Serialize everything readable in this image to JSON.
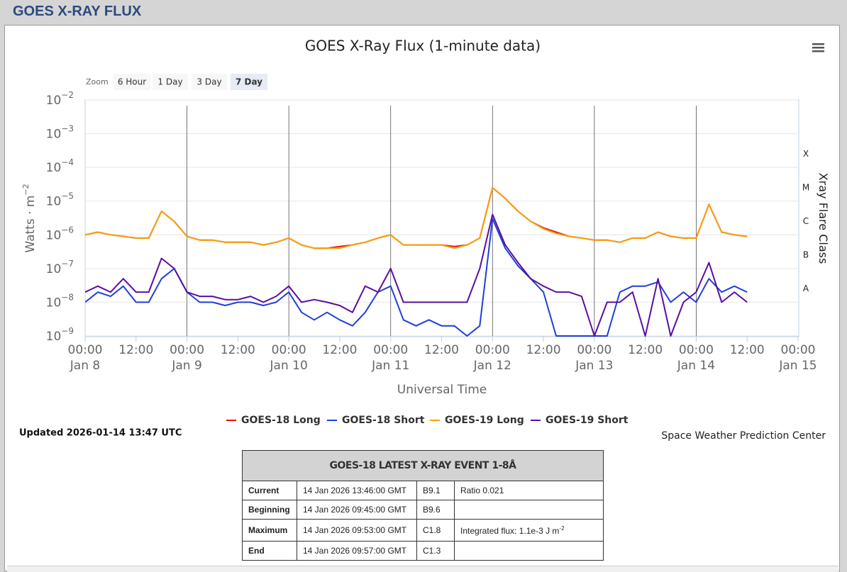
{
  "header": {
    "title": "GOES X-RAY FLUX"
  },
  "chart_data": {
    "type": "line",
    "title": "GOES X-Ray Flux (1-minute data)",
    "zoom_label": "Zoom",
    "zoom_buttons": [
      "6 Hour",
      "1 Day",
      "3 Day",
      "7 Day"
    ],
    "zoom_selected": 3,
    "ylabel": {
      "text": "Watts · m",
      "sup": "−2"
    },
    "xlabel": "Universal Time",
    "y2label": "Xray Flare Class",
    "flare_classes": [
      "X",
      "M",
      "C",
      "B",
      "A"
    ],
    "log_scale": true,
    "grid": true,
    "ylim": [
      1e-09,
      0.01
    ],
    "yticks": [
      {
        "value": 0.01,
        "label": "10",
        "sup": "−2"
      },
      {
        "value": 0.001,
        "label": "10",
        "sup": "−3"
      },
      {
        "value": 0.0001,
        "label": "10",
        "sup": "−4"
      },
      {
        "value": 1e-05,
        "label": "10",
        "sup": "−5"
      },
      {
        "value": 1e-06,
        "label": "10",
        "sup": "−6"
      },
      {
        "value": 1e-07,
        "label": "10",
        "sup": "−7"
      },
      {
        "value": 1e-08,
        "label": "10",
        "sup": "−8"
      },
      {
        "value": 1e-09,
        "label": "10",
        "sup": "−9"
      }
    ],
    "xlim": [
      "Jan 8 00:00",
      "Jan 15 00:00"
    ],
    "xticks": [
      {
        "value": "Jan 8 00:00",
        "label": [
          "00:00",
          "Jan 8"
        ]
      },
      {
        "value": "Jan 8 12:00",
        "label": [
          "12:00"
        ]
      },
      {
        "value": "Jan 9 00:00",
        "label": [
          "00:00",
          "Jan 9"
        ]
      },
      {
        "value": "Jan 9 12:00",
        "label": [
          "12:00"
        ]
      },
      {
        "value": "Jan 10 00:00",
        "label": [
          "00:00",
          "Jan 10"
        ]
      },
      {
        "value": "Jan 10 12:00",
        "label": [
          "12:00"
        ]
      },
      {
        "value": "Jan 11 00:00",
        "label": [
          "00:00",
          "Jan 11"
        ]
      },
      {
        "value": "Jan 11 12:00",
        "label": [
          "12:00"
        ]
      },
      {
        "value": "Jan 12 00:00",
        "label": [
          "00:00",
          "Jan 12"
        ]
      },
      {
        "value": "Jan 12 12:00",
        "label": [
          "12:00"
        ]
      },
      {
        "value": "Jan 13 00:00",
        "label": [
          "00:00",
          "Jan 13"
        ]
      },
      {
        "value": "Jan 13 12:00",
        "label": [
          "12:00"
        ]
      },
      {
        "value": "Jan 14 00:00",
        "label": [
          "00:00",
          "Jan 14"
        ]
      },
      {
        "value": "Jan 14 12:00",
        "label": [
          "12:00"
        ]
      },
      {
        "value": "Jan 15 00:00",
        "label": [
          "00:00",
          "Jan 15"
        ]
      }
    ],
    "x": [
      "Jan 8 00:00",
      "Jan 8 03:00",
      "Jan 8 06:00",
      "Jan 8 09:00",
      "Jan 8 12:00",
      "Jan 8 15:00",
      "Jan 8 18:00",
      "Jan 8 21:00",
      "Jan 9 00:00",
      "Jan 9 03:00",
      "Jan 9 06:00",
      "Jan 9 09:00",
      "Jan 9 12:00",
      "Jan 9 15:00",
      "Jan 9 18:00",
      "Jan 9 21:00",
      "Jan 10 00:00",
      "Jan 10 03:00",
      "Jan 10 06:00",
      "Jan 10 09:00",
      "Jan 10 12:00",
      "Jan 10 15:00",
      "Jan 10 18:00",
      "Jan 10 21:00",
      "Jan 11 00:00",
      "Jan 11 03:00",
      "Jan 11 06:00",
      "Jan 11 09:00",
      "Jan 11 12:00",
      "Jan 11 15:00",
      "Jan 11 18:00",
      "Jan 11 21:00",
      "Jan 12 00:00",
      "Jan 12 03:00",
      "Jan 12 06:00",
      "Jan 12 09:00",
      "Jan 12 12:00",
      "Jan 12 15:00",
      "Jan 12 18:00",
      "Jan 12 21:00",
      "Jan 13 00:00",
      "Jan 13 03:00",
      "Jan 13 06:00",
      "Jan 13 09:00",
      "Jan 13 12:00",
      "Jan 13 15:00",
      "Jan 13 18:00",
      "Jan 13 21:00",
      "Jan 14 00:00",
      "Jan 14 03:00",
      "Jan 14 06:00",
      "Jan 14 09:00",
      "Jan 14 12:00"
    ],
    "series": [
      {
        "name": "GOES-18 Long",
        "color": "#e8160c",
        "values": [
          1e-06,
          1.2e-06,
          1e-06,
          9e-07,
          8e-07,
          8e-07,
          5e-06,
          2.5e-06,
          9e-07,
          7e-07,
          7e-07,
          6e-07,
          6e-07,
          6e-07,
          5e-07,
          6e-07,
          8e-07,
          5e-07,
          4e-07,
          4e-07,
          4.5e-07,
          5e-07,
          6e-07,
          8e-07,
          1e-06,
          5e-07,
          5e-07,
          5e-07,
          5e-07,
          4.5e-07,
          5e-07,
          8e-07,
          2.5e-05,
          1.2e-05,
          5e-06,
          2.5e-06,
          1.6e-06,
          1.2e-06,
          9e-07,
          8e-07,
          7e-07,
          7e-07,
          6e-07,
          8e-07,
          8e-07,
          1.2e-06,
          9e-07,
          8e-07,
          8e-07,
          8e-06,
          1.2e-06,
          1e-06,
          9e-07
        ]
      },
      {
        "name": "GOES-18 Short",
        "color": "#1e3fd8",
        "values": [
          1e-08,
          2e-08,
          1.5e-08,
          3e-08,
          1e-08,
          1e-08,
          5e-08,
          1e-07,
          2e-08,
          1e-08,
          1e-08,
          8e-09,
          1e-08,
          1e-08,
          8e-09,
          1e-08,
          2e-08,
          5e-09,
          3e-09,
          5e-09,
          3e-09,
          2e-09,
          5e-09,
          2e-08,
          3e-08,
          3e-09,
          2e-09,
          3e-09,
          2e-09,
          2e-09,
          1e-09,
          2e-09,
          3e-06,
          4e-07,
          1.2e-07,
          5e-08,
          2e-08,
          1e-09,
          1e-09,
          1e-09,
          1e-09,
          1e-09,
          2e-08,
          3e-08,
          3e-08,
          4e-08,
          1e-08,
          2e-08,
          1e-08,
          5e-08,
          2e-08,
          3e-08,
          2e-08
        ]
      },
      {
        "name": "GOES-19 Long",
        "color": "#f5a20d",
        "values": [
          1e-06,
          1.2e-06,
          1e-06,
          9e-07,
          8e-07,
          8e-07,
          5e-06,
          2.5e-06,
          9e-07,
          7e-07,
          7e-07,
          6e-07,
          6e-07,
          6e-07,
          5e-07,
          6e-07,
          8e-07,
          5e-07,
          4e-07,
          4e-07,
          4e-07,
          5e-07,
          6e-07,
          8e-07,
          1e-06,
          5e-07,
          5e-07,
          5e-07,
          5e-07,
          4e-07,
          5e-07,
          8e-07,
          2.5e-05,
          1.2e-05,
          5e-06,
          2.5e-06,
          1.5e-06,
          1.1e-06,
          9e-07,
          8e-07,
          7e-07,
          7e-07,
          6e-07,
          8e-07,
          8e-07,
          1.2e-06,
          9e-07,
          8e-07,
          8e-07,
          8e-06,
          1.2e-06,
          1e-06,
          9e-07
        ]
      },
      {
        "name": "GOES-19 Short",
        "color": "#5a0fa0",
        "values": [
          2e-08,
          3e-08,
          2e-08,
          5e-08,
          2e-08,
          2e-08,
          2e-07,
          1e-07,
          2e-08,
          1.5e-08,
          1.5e-08,
          1.2e-08,
          1.2e-08,
          1.5e-08,
          1e-08,
          1.5e-08,
          3e-08,
          1e-08,
          1.2e-08,
          1e-08,
          8e-09,
          5e-09,
          3e-08,
          2e-08,
          1e-07,
          1e-08,
          1e-08,
          1e-08,
          1e-08,
          1e-08,
          1e-08,
          1e-07,
          4e-06,
          5e-07,
          1.5e-07,
          5e-08,
          3e-08,
          2e-08,
          2e-08,
          1.5e-08,
          1e-09,
          1e-08,
          1e-08,
          2e-08,
          1e-09,
          5e-08,
          1e-09,
          1e-08,
          2e-08,
          1.5e-07,
          1e-08,
          2e-08,
          1e-08
        ]
      }
    ],
    "updated": "Updated 2026-01-14 13:47 UTC",
    "credit": "Space Weather Prediction Center"
  },
  "event_table": {
    "title": "GOES-18 LATEST X-RAY EVENT 1-8Å",
    "rows": [
      {
        "label": "Current",
        "time": "14 Jan 2026 13:46:00 GMT",
        "class": "B9.1",
        "note": {
          "text": "Ratio 0.021"
        }
      },
      {
        "label": "Beginning",
        "time": "14 Jan 2026 09:45:00 GMT",
        "class": "B9.6"
      },
      {
        "label": "Maximum",
        "time": "14 Jan 2026 09:53:00 GMT",
        "class": "C1.8",
        "note": {
          "text": "Integrated flux: 1.1e-3 J m",
          "sup": "-2"
        }
      },
      {
        "label": "End",
        "time": "14 Jan 2026 09:57:00 GMT",
        "class": "C1.3"
      }
    ]
  }
}
